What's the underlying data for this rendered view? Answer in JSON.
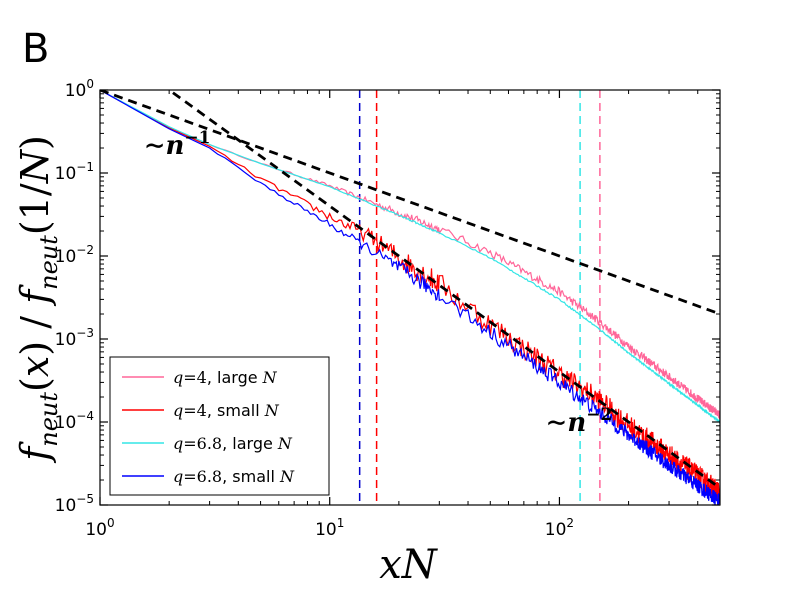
{
  "panel_label": "B",
  "chart_data": {
    "type": "line",
    "xscale": "log",
    "yscale": "log",
    "xlim": [
      1,
      500
    ],
    "ylim": [
      1e-05,
      1
    ],
    "xlabel": "xN",
    "ylabel": "f_neut(x) / f_neut(1/N)",
    "x_ticks": [
      {
        "value": 1,
        "label": "10^0"
      },
      {
        "value": 10,
        "label": "10^1"
      },
      {
        "value": 100,
        "label": "10^2"
      }
    ],
    "y_ticks": [
      {
        "value": 1,
        "label": "10^0"
      },
      {
        "value": 0.1,
        "label": "10^-1"
      },
      {
        "value": 0.01,
        "label": "10^-2"
      },
      {
        "value": 0.001,
        "label": "10^-3"
      },
      {
        "value": 0.0001,
        "label": "10^-4"
      },
      {
        "value": 1e-05,
        "label": "10^-5"
      }
    ],
    "grid": false,
    "legend_position": "lower-left",
    "series": [
      {
        "name": "q=4, large N",
        "label_q": "q",
        "label_eq": "=4",
        "label_size": ", large ",
        "label_N": "N",
        "color": "#ff6699",
        "x": [
          1,
          2,
          3,
          5,
          10,
          20,
          30,
          50,
          100,
          150,
          200,
          300,
          500
        ],
        "y": [
          1,
          0.35,
          0.22,
          0.13,
          0.07,
          0.033,
          0.021,
          0.011,
          0.0037,
          0.0016,
          0.00082,
          0.00035,
          0.00012
        ],
        "noise": 0.05
      },
      {
        "name": "q=4, small N",
        "label_q": "q",
        "label_eq": "=4",
        "label_size": ", small ",
        "label_N": "N",
        "color": "#ff0000",
        "x": [
          1,
          2,
          3,
          5,
          10,
          15,
          20,
          30,
          50,
          100,
          150,
          200,
          300,
          500
        ],
        "y": [
          1,
          0.35,
          0.21,
          0.085,
          0.03,
          0.017,
          0.0095,
          0.0046,
          0.0015,
          0.00038,
          0.00018,
          9e-05,
          4e-05,
          1.4e-05
        ],
        "noise": 0.14
      },
      {
        "name": "q=6.8, large N",
        "label_q": "q",
        "label_eq": "=6.8",
        "label_size": ", large ",
        "label_N": "N",
        "color": "#33e6e6",
        "x": [
          1,
          2,
          3,
          5,
          10,
          20,
          30,
          50,
          100,
          150,
          200,
          300,
          500
        ],
        "y": [
          1,
          0.36,
          0.22,
          0.13,
          0.068,
          0.031,
          0.019,
          0.0095,
          0.003,
          0.0013,
          0.00068,
          0.00029,
          0.0001
        ],
        "noise": 0.01
      },
      {
        "name": "q=6.8, small N",
        "label_q": "q",
        "label_eq": "=6.8",
        "label_size": ", small ",
        "label_N": "N",
        "color": "#0000ff",
        "x": [
          1,
          2,
          3,
          5,
          10,
          15,
          20,
          30,
          50,
          100,
          150,
          200,
          300,
          500
        ],
        "y": [
          1,
          0.34,
          0.2,
          0.075,
          0.024,
          0.012,
          0.0072,
          0.0034,
          0.0012,
          0.0003,
          0.00013,
          7e-05,
          3e-05,
          1.1e-05
        ],
        "noise": 0.09
      }
    ],
    "reference_lines": [
      {
        "name": "~n^-1",
        "x": [
          1,
          500
        ],
        "y": [
          1,
          0.002
        ],
        "color": "#000000"
      },
      {
        "name": "~n^-2",
        "x": [
          1,
          500
        ],
        "y": [
          4,
          1.6e-05
        ],
        "color": "#000000"
      }
    ],
    "vertical_lines": [
      {
        "x": 13.5,
        "color": "#0000cc"
      },
      {
        "x": 16,
        "color": "#ff0000"
      },
      {
        "x": 123,
        "color": "#33e6e6"
      },
      {
        "x": 150,
        "color": "#ff6699"
      }
    ],
    "annotations": [
      {
        "text": "~n^-1",
        "tilde": "∼",
        "base": "n",
        "exp": "−1",
        "x": 1.55,
        "y": 0.17
      },
      {
        "text": "~n^-2",
        "tilde": "∼",
        "base": "n",
        "exp": "−2",
        "x": 87,
        "y": 7.8e-05
      }
    ]
  }
}
